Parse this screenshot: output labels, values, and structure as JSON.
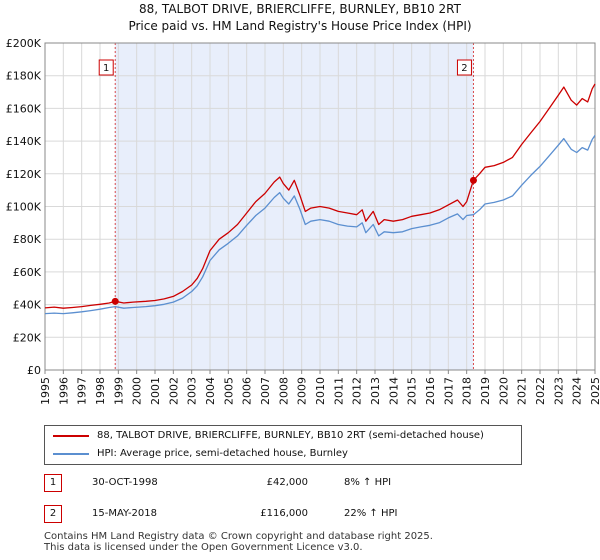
{
  "title_line1": "88, TALBOT DRIVE, BRIERCLIFFE, BURNLEY, BB10 2RT",
  "title_line2": "Price paid vs. HM Land Registry's House Price Index (HPI)",
  "chart_data": {
    "type": "line",
    "xlim": [
      1995,
      2025
    ],
    "ylim": [
      0,
      200000
    ],
    "x_ticks": [
      1995,
      1996,
      1997,
      1998,
      1999,
      2000,
      2001,
      2002,
      2003,
      2004,
      2005,
      2006,
      2007,
      2008,
      2009,
      2010,
      2011,
      2012,
      2013,
      2014,
      2015,
      2016,
      2017,
      2018,
      2019,
      2020,
      2021,
      2022,
      2023,
      2024,
      2025
    ],
    "y_ticks": [
      {
        "value": 0,
        "label": "£0"
      },
      {
        "value": 20000,
        "label": "£20K"
      },
      {
        "value": 40000,
        "label": "£40K"
      },
      {
        "value": 60000,
        "label": "£60K"
      },
      {
        "value": 80000,
        "label": "£80K"
      },
      {
        "value": 100000,
        "label": "£100K"
      },
      {
        "value": 120000,
        "label": "£120K"
      },
      {
        "value": 140000,
        "label": "£140K"
      },
      {
        "value": 160000,
        "label": "£160K"
      },
      {
        "value": 180000,
        "label": "£180K"
      },
      {
        "value": 200000,
        "label": "£200K"
      }
    ],
    "shaded_region": [
      1998.83,
      2018.37
    ],
    "series": [
      {
        "name": "88, TALBOT DRIVE, BRIERCLIFFE, BURNLEY, BB10 2RT (semi-detached house)",
        "color": "#cc0000",
        "points": [
          [
            1995.0,
            38000
          ],
          [
            1995.5,
            38500
          ],
          [
            1996.0,
            37800
          ],
          [
            1996.5,
            38200
          ],
          [
            1997.0,
            38800
          ],
          [
            1997.5,
            39500
          ],
          [
            1998.0,
            40200
          ],
          [
            1998.5,
            41000
          ],
          [
            1998.83,
            42000
          ],
          [
            1999.3,
            41000
          ],
          [
            1999.8,
            41500
          ],
          [
            2000.5,
            42000
          ],
          [
            2001.0,
            42500
          ],
          [
            2001.5,
            43500
          ],
          [
            2002.0,
            45000
          ],
          [
            2002.5,
            48000
          ],
          [
            2003.0,
            52000
          ],
          [
            2003.3,
            56000
          ],
          [
            2003.6,
            62000
          ],
          [
            2004.0,
            73000
          ],
          [
            2004.5,
            80000
          ],
          [
            2005.0,
            84000
          ],
          [
            2005.5,
            89000
          ],
          [
            2006.0,
            96000
          ],
          [
            2006.5,
            103000
          ],
          [
            2007.0,
            108000
          ],
          [
            2007.5,
            115000
          ],
          [
            2007.8,
            118000
          ],
          [
            2008.0,
            114000
          ],
          [
            2008.3,
            110000
          ],
          [
            2008.6,
            116000
          ],
          [
            2008.9,
            107000
          ],
          [
            2009.2,
            97000
          ],
          [
            2009.5,
            99000
          ],
          [
            2010.0,
            100000
          ],
          [
            2010.5,
            99000
          ],
          [
            2011.0,
            97000
          ],
          [
            2011.5,
            96000
          ],
          [
            2012.0,
            95000
          ],
          [
            2012.3,
            98000
          ],
          [
            2012.5,
            91000
          ],
          [
            2012.9,
            97000
          ],
          [
            2013.2,
            89000
          ],
          [
            2013.5,
            92000
          ],
          [
            2014.0,
            91000
          ],
          [
            2014.5,
            92000
          ],
          [
            2015.0,
            94000
          ],
          [
            2015.5,
            95000
          ],
          [
            2016.0,
            96000
          ],
          [
            2016.5,
            98000
          ],
          [
            2017.0,
            101000
          ],
          [
            2017.5,
            104000
          ],
          [
            2017.8,
            100000
          ],
          [
            2018.0,
            103000
          ],
          [
            2018.37,
            116000
          ],
          [
            2018.7,
            120000
          ],
          [
            2019.0,
            124000
          ],
          [
            2019.5,
            125000
          ],
          [
            2020.0,
            127000
          ],
          [
            2020.5,
            130000
          ],
          [
            2021.0,
            138000
          ],
          [
            2021.5,
            145000
          ],
          [
            2022.0,
            152000
          ],
          [
            2022.5,
            160000
          ],
          [
            2023.0,
            168000
          ],
          [
            2023.3,
            173000
          ],
          [
            2023.7,
            165000
          ],
          [
            2024.0,
            162000
          ],
          [
            2024.3,
            166000
          ],
          [
            2024.6,
            164000
          ],
          [
            2024.85,
            172000
          ],
          [
            2025.0,
            175000
          ]
        ]
      },
      {
        "name": "HPI: Average price, semi-detached house, Burnley",
        "color": "#5b8fd0",
        "points": [
          [
            1995.0,
            34500
          ],
          [
            1995.5,
            34800
          ],
          [
            1996.0,
            34500
          ],
          [
            1996.5,
            35000
          ],
          [
            1997.0,
            35600
          ],
          [
            1997.5,
            36300
          ],
          [
            1998.0,
            37200
          ],
          [
            1998.5,
            38200
          ],
          [
            1998.83,
            38800
          ],
          [
            1999.3,
            37800
          ],
          [
            1999.8,
            38200
          ],
          [
            2000.5,
            38800
          ],
          [
            2001.0,
            39300
          ],
          [
            2001.5,
            40200
          ],
          [
            2002.0,
            41500
          ],
          [
            2002.5,
            44000
          ],
          [
            2003.0,
            48000
          ],
          [
            2003.3,
            51500
          ],
          [
            2003.6,
            57000
          ],
          [
            2004.0,
            67000
          ],
          [
            2004.5,
            73500
          ],
          [
            2005.0,
            77500
          ],
          [
            2005.5,
            82000
          ],
          [
            2006.0,
            88500
          ],
          [
            2006.5,
            94500
          ],
          [
            2007.0,
            99000
          ],
          [
            2007.5,
            105500
          ],
          [
            2007.8,
            108500
          ],
          [
            2008.0,
            105000
          ],
          [
            2008.3,
            101500
          ],
          [
            2008.6,
            106500
          ],
          [
            2008.9,
            98500
          ],
          [
            2009.2,
            89000
          ],
          [
            2009.5,
            91000
          ],
          [
            2010.0,
            92000
          ],
          [
            2010.5,
            91000
          ],
          [
            2011.0,
            89000
          ],
          [
            2011.5,
            88000
          ],
          [
            2012.0,
            87500
          ],
          [
            2012.3,
            90000
          ],
          [
            2012.5,
            84000
          ],
          [
            2012.9,
            89000
          ],
          [
            2013.2,
            82000
          ],
          [
            2013.5,
            84500
          ],
          [
            2014.0,
            84000
          ],
          [
            2014.5,
            84500
          ],
          [
            2015.0,
            86500
          ],
          [
            2015.5,
            87500
          ],
          [
            2016.0,
            88500
          ],
          [
            2016.5,
            90000
          ],
          [
            2017.0,
            93000
          ],
          [
            2017.5,
            95500
          ],
          [
            2017.8,
            92000
          ],
          [
            2018.0,
            94500
          ],
          [
            2018.37,
            95000
          ],
          [
            2018.7,
            98000
          ],
          [
            2019.0,
            101500
          ],
          [
            2019.5,
            102500
          ],
          [
            2020.0,
            104000
          ],
          [
            2020.5,
            106500
          ],
          [
            2021.0,
            113000
          ],
          [
            2021.5,
            119000
          ],
          [
            2022.0,
            124500
          ],
          [
            2022.5,
            131000
          ],
          [
            2023.0,
            137500
          ],
          [
            2023.3,
            141500
          ],
          [
            2023.7,
            135000
          ],
          [
            2024.0,
            133000
          ],
          [
            2024.3,
            136000
          ],
          [
            2024.6,
            134500
          ],
          [
            2024.85,
            141000
          ],
          [
            2025.0,
            143500
          ]
        ]
      }
    ],
    "sales": [
      {
        "num": "1",
        "x": 1998.83,
        "y": 42000,
        "date": "30-OCT-1998",
        "price": "£42,000",
        "hpi": "8% ↑ HPI"
      },
      {
        "num": "2",
        "x": 2018.37,
        "y": 116000,
        "date": "15-MAY-2018",
        "price": "£116,000",
        "hpi": "22% ↑ HPI"
      }
    ]
  },
  "footer_line1": "Contains HM Land Registry data © Crown copyright and database right 2025.",
  "footer_line2": "This data is licensed under the Open Government Licence v3.0."
}
